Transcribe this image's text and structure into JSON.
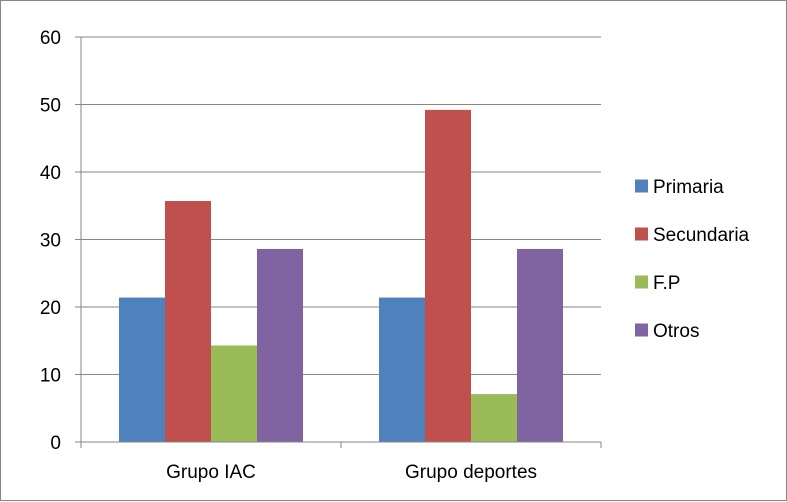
{
  "chart_data": {
    "type": "bar",
    "title": "",
    "xlabel": "",
    "ylabel": "",
    "categories": [
      "Grupo IAC",
      "Grupo deportes"
    ],
    "series": [
      {
        "name": "Primaria",
        "values": [
          21.4,
          21.4
        ],
        "color": "#4F81BD"
      },
      {
        "name": "Secundaria",
        "values": [
          35.7,
          49.2
        ],
        "color": "#C0504D"
      },
      {
        "name": "F.P",
        "values": [
          14.3,
          7.1
        ],
        "color": "#9BBB59"
      },
      {
        "name": "Otros",
        "values": [
          28.6,
          28.6
        ],
        "color": "#8064A2"
      }
    ],
    "ylim": [
      0,
      60
    ],
    "yticks": [
      0,
      10,
      20,
      30,
      40,
      50,
      60
    ],
    "grid": true,
    "legend_position": "right"
  }
}
